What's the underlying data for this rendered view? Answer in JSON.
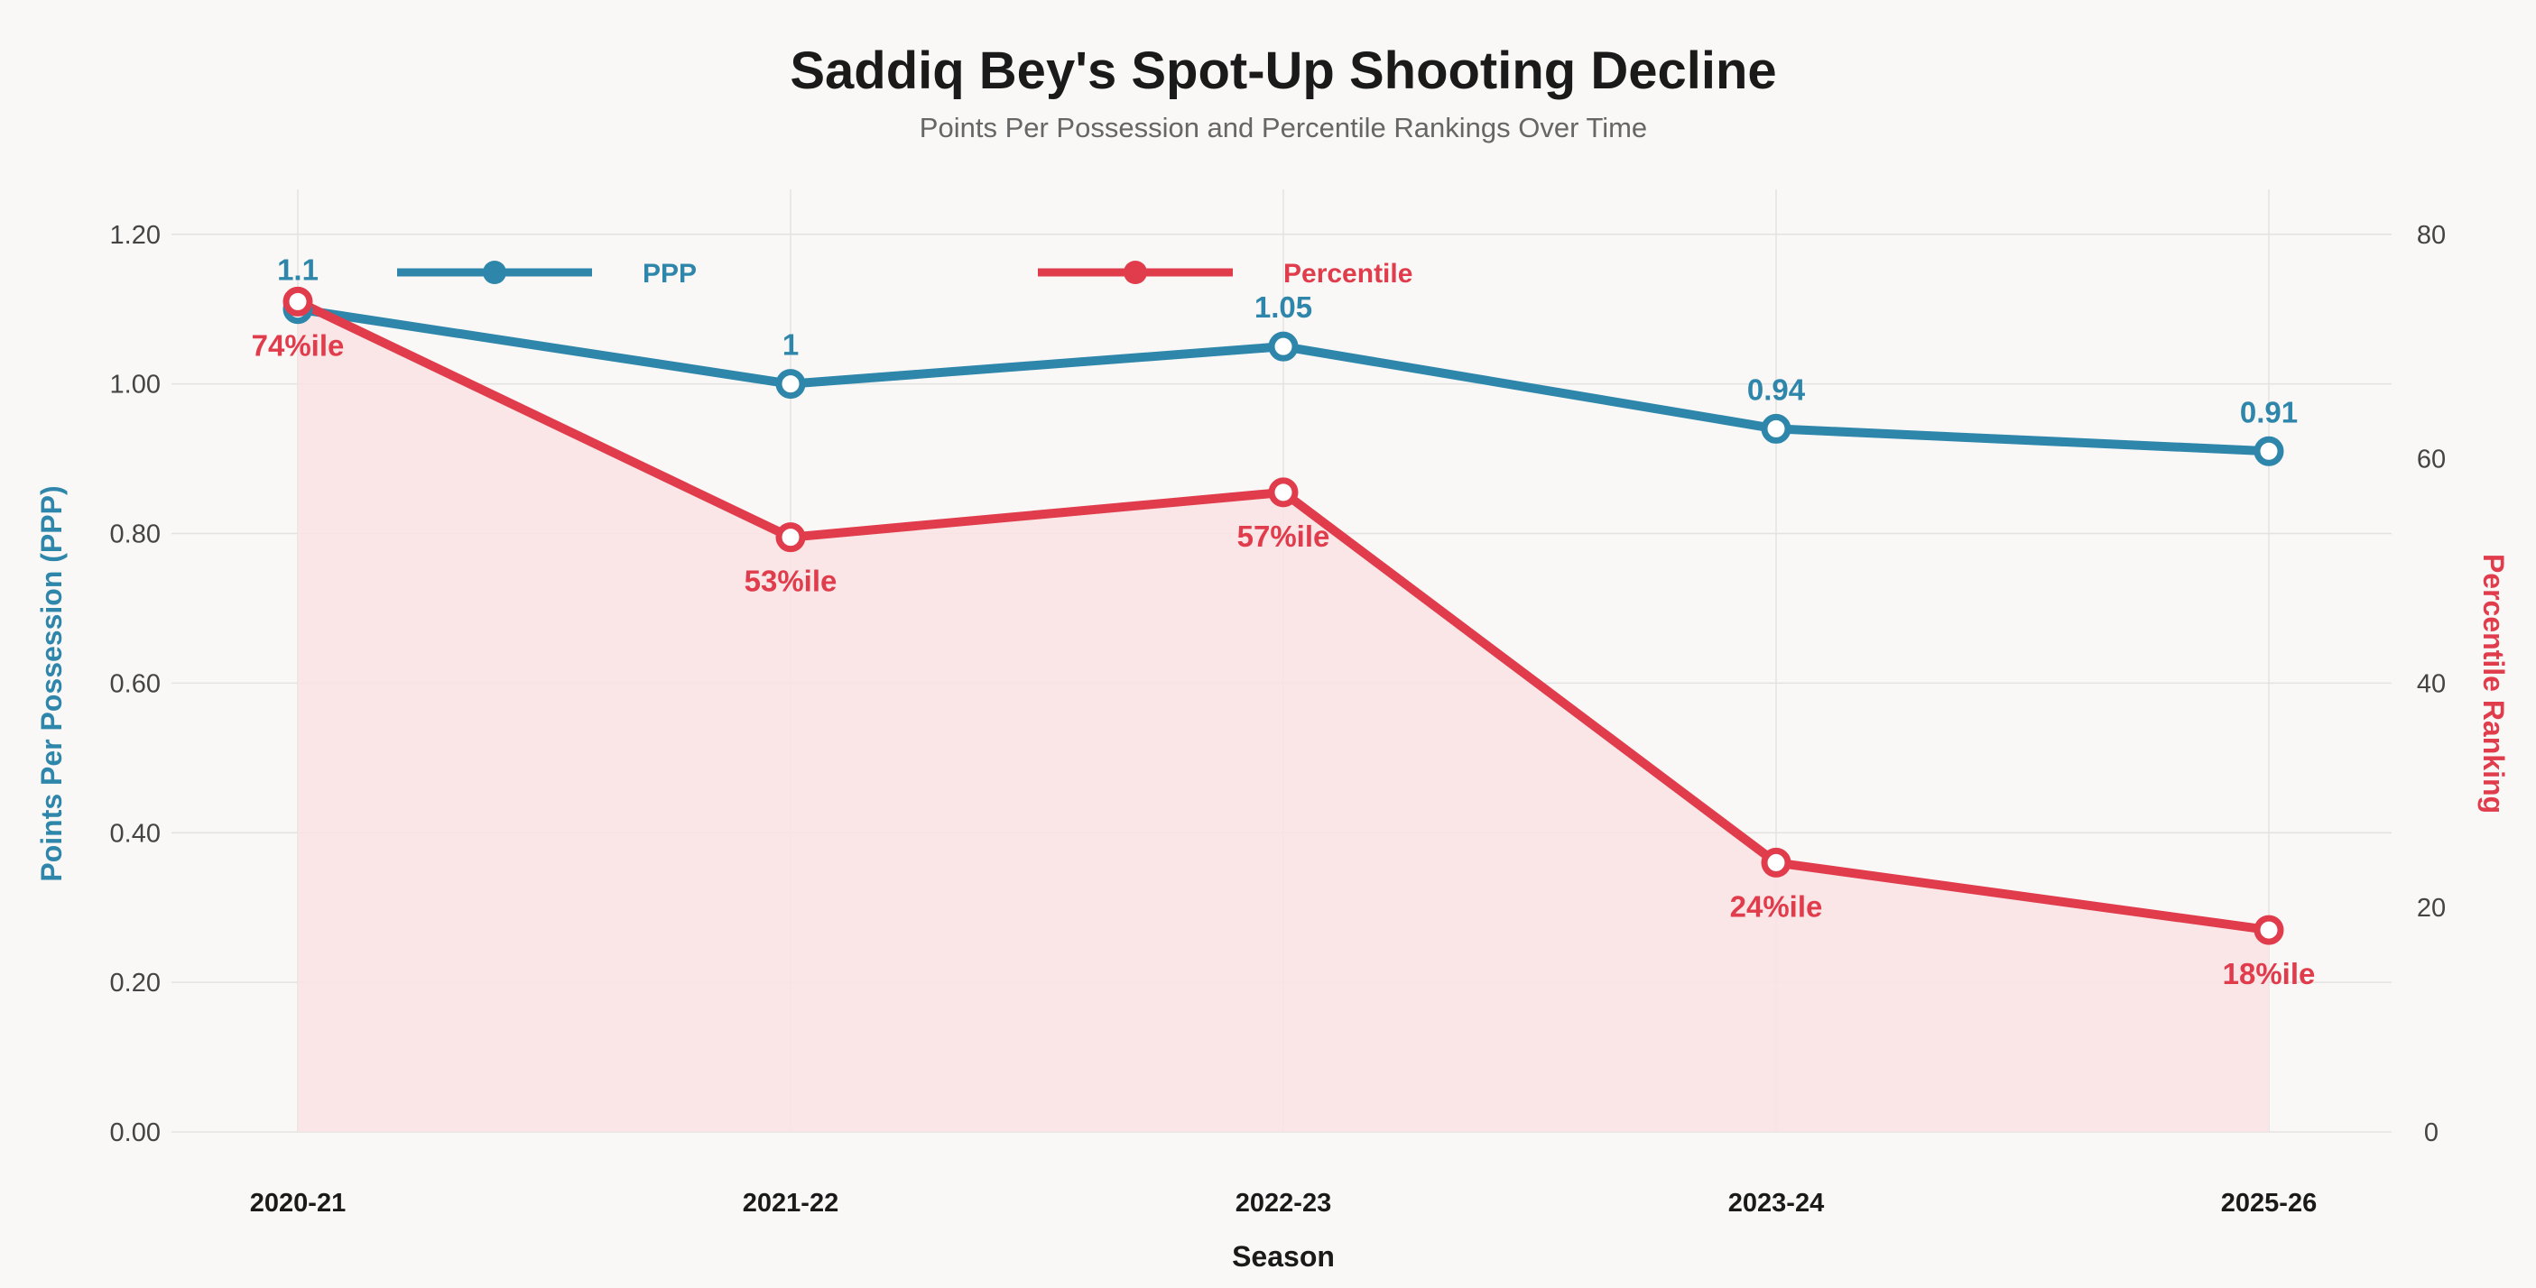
{
  "chart_data": {
    "type": "line",
    "title": "Saddiq Bey's Spot-Up Shooting Decline",
    "subtitle": "Points Per Possession and Percentile Rankings Over Time",
    "xlabel": "Season",
    "ylabel_left": "Points Per Possession (PPP)",
    "ylabel_right": "Percentile Ranking",
    "categories": [
      "2020-21",
      "2021-22",
      "2022-23",
      "2023-24",
      "2025-26"
    ],
    "ylim_left": [
      0,
      1.26
    ],
    "ylim_right": [
      0,
      84
    ],
    "yticks_left": [
      "0.00",
      "0.20",
      "0.40",
      "0.60",
      "0.80",
      "1.00",
      "1.20"
    ],
    "yticks_right": [
      "0",
      "20",
      "40",
      "60",
      "80"
    ],
    "grid": true,
    "legend_position": "top",
    "series": [
      {
        "name": "PPP",
        "axis": "left",
        "color": "#2e86ab",
        "values": [
          1.1,
          1.0,
          1.05,
          0.94,
          0.91
        ],
        "labels": [
          "1.1",
          "1",
          "1.05",
          "0.94",
          "0.91"
        ]
      },
      {
        "name": "Percentile",
        "axis": "right",
        "color": "#e03c4c",
        "fill": "#f9e3e4",
        "values": [
          74,
          53,
          57,
          24,
          18
        ],
        "labels": [
          "74%ile",
          "53%ile",
          "57%ile",
          "24%ile",
          "18%ile"
        ]
      }
    ]
  }
}
